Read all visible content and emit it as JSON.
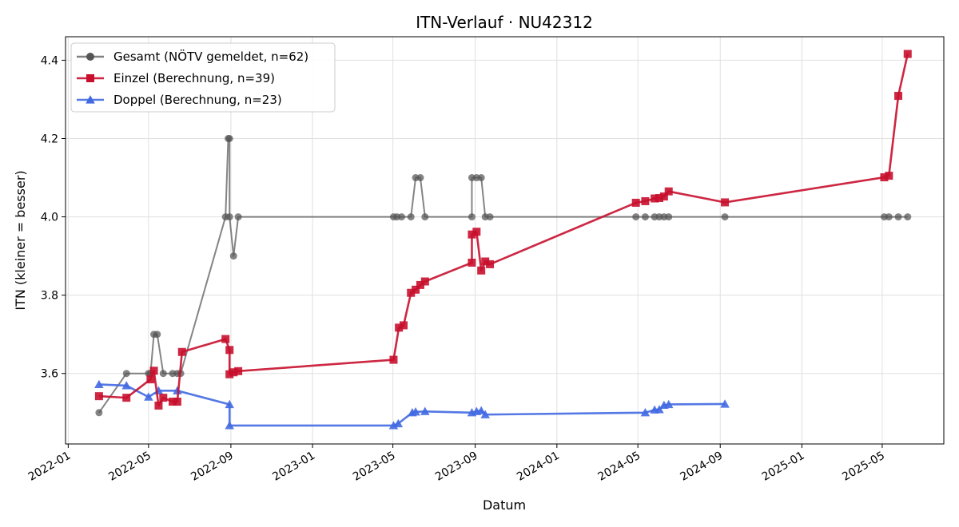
{
  "chart_data": {
    "type": "line",
    "title": "ITN-Verlauf · NU42312",
    "xlabel": "Datum",
    "ylabel": "ITN  (kleiner = besser)",
    "x_type": "date",
    "xlim": [
      "2021-12-28",
      "2025-08-01"
    ],
    "ylim": [
      3.42,
      4.46
    ],
    "x_ticks": [
      "2022-01-01",
      "2022-05-01",
      "2022-09-01",
      "2023-01-01",
      "2023-05-01",
      "2023-09-01",
      "2024-01-01",
      "2024-05-01",
      "2024-09-01",
      "2025-01-01",
      "2025-05-01"
    ],
    "x_tick_labels": [
      "2022-01",
      "2022-05",
      "2022-09",
      "2023-01",
      "2023-05",
      "2023-09",
      "2024-01",
      "2024-05",
      "2024-09",
      "2025-01",
      "2025-05"
    ],
    "y_ticks": [
      3.6,
      3.8,
      4.0,
      4.2,
      4.4
    ],
    "y_tick_labels": [
      "3.6",
      "3.8",
      "4.0",
      "4.2",
      "4.4"
    ],
    "grid": true,
    "legend_position": "top-left",
    "series": [
      {
        "name": "Gesamt (NÖTV gemeldet, n=62)",
        "color": "#555555",
        "marker": "circle",
        "points": [
          [
            "2022-02-16",
            3.5
          ],
          [
            "2022-03-29",
            3.6
          ],
          [
            "2022-05-01",
            3.6
          ],
          [
            "2022-05-04",
            3.6
          ],
          [
            "2022-05-09",
            3.7
          ],
          [
            "2022-05-14",
            3.7
          ],
          [
            "2022-05-23",
            3.6
          ],
          [
            "2022-06-06",
            3.6
          ],
          [
            "2022-06-13",
            3.6
          ],
          [
            "2022-06-18",
            3.6
          ],
          [
            "2022-08-24",
            4.0
          ],
          [
            "2022-08-28",
            4.2
          ],
          [
            "2022-08-30",
            4.2
          ],
          [
            "2022-08-30",
            4.0
          ],
          [
            "2022-09-05",
            3.9
          ],
          [
            "2022-09-12",
            4.0
          ],
          [
            "2023-05-02",
            4.0
          ],
          [
            "2023-05-07",
            4.0
          ],
          [
            "2023-05-14",
            4.0
          ],
          [
            "2023-05-28",
            4.0
          ],
          [
            "2023-06-04",
            4.1
          ],
          [
            "2023-06-11",
            4.1
          ],
          [
            "2023-06-18",
            4.0
          ],
          [
            "2023-08-27",
            4.0
          ],
          [
            "2023-08-27",
            4.1
          ],
          [
            "2023-09-03",
            4.1
          ],
          [
            "2023-09-10",
            4.1
          ],
          [
            "2023-09-16",
            4.0
          ],
          [
            "2023-09-23",
            4.0
          ],
          [
            "2024-04-28",
            4.0
          ],
          [
            "2024-05-12",
            4.0
          ],
          [
            "2024-05-26",
            4.0
          ],
          [
            "2024-06-02",
            4.0
          ],
          [
            "2024-06-09",
            4.0
          ],
          [
            "2024-06-16",
            4.0
          ],
          [
            "2024-09-08",
            4.0
          ],
          [
            "2025-05-04",
            4.0
          ],
          [
            "2025-05-11",
            4.0
          ],
          [
            "2025-05-25",
            4.0
          ],
          [
            "2025-06-08",
            4.0
          ]
        ]
      },
      {
        "name": "Einzel (Berechnung, n=39)",
        "color": "#c8102e",
        "marker": "square",
        "points": [
          [
            "2022-02-16",
            3.542
          ],
          [
            "2022-03-29",
            3.538
          ],
          [
            "2022-05-04",
            3.585
          ],
          [
            "2022-05-09",
            3.607
          ],
          [
            "2022-05-16",
            3.518
          ],
          [
            "2022-05-23",
            3.538
          ],
          [
            "2022-06-06",
            3.528
          ],
          [
            "2022-06-13",
            3.528
          ],
          [
            "2022-06-20",
            3.655
          ],
          [
            "2022-08-24",
            3.688
          ],
          [
            "2022-08-30",
            3.66
          ],
          [
            "2022-08-30",
            3.598
          ],
          [
            "2022-09-05",
            3.603
          ],
          [
            "2022-09-12",
            3.606
          ],
          [
            "2023-05-02",
            3.635
          ],
          [
            "2023-05-10",
            3.717
          ],
          [
            "2023-05-17",
            3.723
          ],
          [
            "2023-05-28",
            3.806
          ],
          [
            "2023-06-04",
            3.814
          ],
          [
            "2023-06-11",
            3.826
          ],
          [
            "2023-06-18",
            3.835
          ],
          [
            "2023-08-27",
            3.883
          ],
          [
            "2023-08-27",
            3.955
          ],
          [
            "2023-09-03",
            3.962
          ],
          [
            "2023-09-10",
            3.863
          ],
          [
            "2023-09-16",
            3.886
          ],
          [
            "2023-09-23",
            3.879
          ],
          [
            "2024-04-28",
            4.036
          ],
          [
            "2024-05-12",
            4.04
          ],
          [
            "2024-05-26",
            4.047
          ],
          [
            "2024-06-02",
            4.048
          ],
          [
            "2024-06-09",
            4.052
          ],
          [
            "2024-06-16",
            4.065
          ],
          [
            "2024-09-08",
            4.037
          ],
          [
            "2025-05-04",
            4.101
          ],
          [
            "2025-05-11",
            4.105
          ],
          [
            "2025-05-25",
            4.309
          ],
          [
            "2025-06-08",
            4.416
          ]
        ]
      },
      {
        "name": "Doppel (Berechnung, n=23)",
        "color": "#4169e1",
        "marker": "triangle",
        "points": [
          [
            "2022-02-16",
            3.572
          ],
          [
            "2022-03-29",
            3.569
          ],
          [
            "2022-05-01",
            3.54
          ],
          [
            "2022-05-16",
            3.556
          ],
          [
            "2022-06-13",
            3.556
          ],
          [
            "2022-08-30",
            3.521
          ],
          [
            "2022-08-30",
            3.467
          ],
          [
            "2023-05-02",
            3.467
          ],
          [
            "2023-05-09",
            3.472
          ],
          [
            "2023-05-30",
            3.5
          ],
          [
            "2023-06-04",
            3.502
          ],
          [
            "2023-06-18",
            3.503
          ],
          [
            "2023-08-27",
            3.5
          ],
          [
            "2023-09-03",
            3.503
          ],
          [
            "2023-09-10",
            3.505
          ],
          [
            "2023-09-16",
            3.495
          ],
          [
            "2024-05-12",
            3.5
          ],
          [
            "2024-05-26",
            3.507
          ],
          [
            "2024-06-02",
            3.508
          ],
          [
            "2024-06-09",
            3.519
          ],
          [
            "2024-06-16",
            3.521
          ],
          [
            "2024-09-08",
            3.522
          ]
        ]
      }
    ]
  }
}
